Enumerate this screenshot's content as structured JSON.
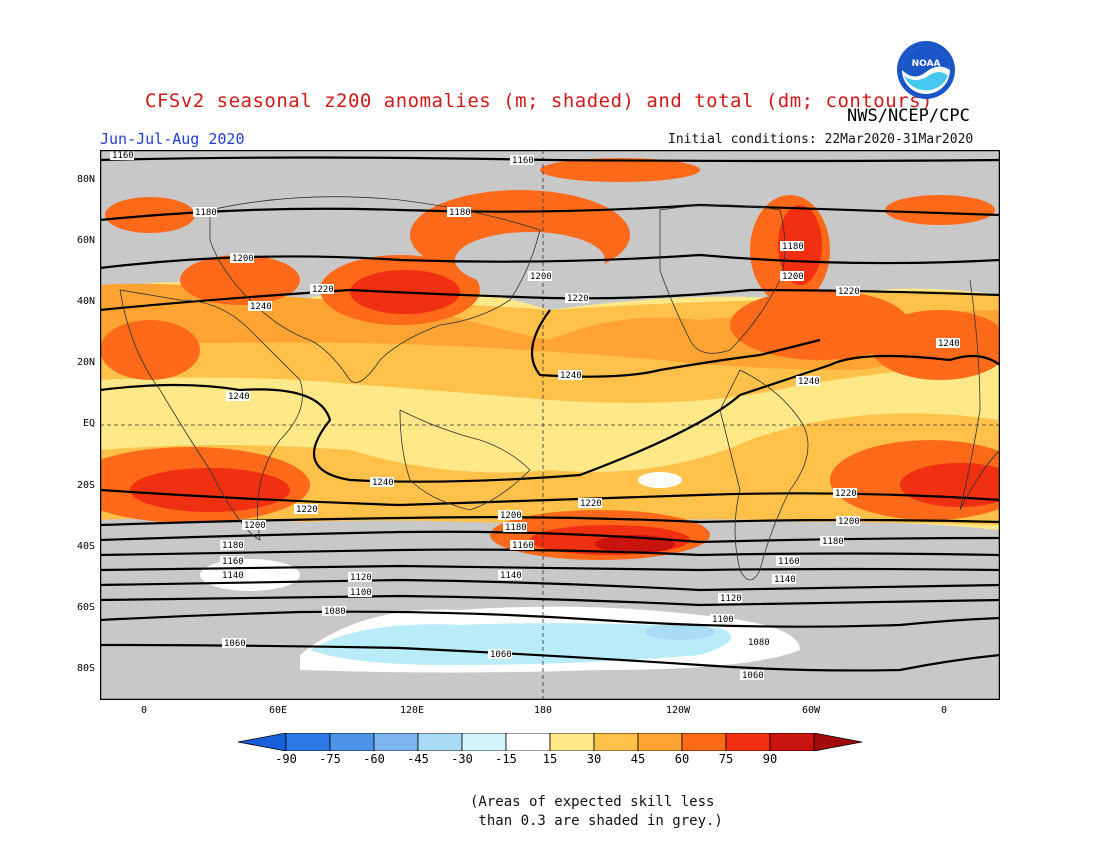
{
  "title": "CFSv2 seasonal z200 anomalies (m; shaded) and total (dm; contours)",
  "agency": "NWS/NCEP/CPC",
  "season": "Jun-Jul-Aug 2020",
  "initial_conditions": "Initial conditions: 22Mar2020-31Mar2020",
  "logo_text": "NOAA",
  "lat_labels": [
    "80N",
    "60N",
    "40N",
    "20N",
    "EQ",
    "20S",
    "40S",
    "60S",
    "80S"
  ],
  "lon_labels": [
    "0",
    "60E",
    "120E",
    "180",
    "120W",
    "60W",
    "0"
  ],
  "colorbar": {
    "labels": [
      "-90",
      "-75",
      "-60",
      "-45",
      "-30",
      "-15",
      "15",
      "30",
      "45",
      "60",
      "75",
      "90"
    ],
    "colors": [
      "#1560d8",
      "#2d7ae6",
      "#4c93ea",
      "#7cb4ef",
      "#a8dcf5",
      "#d4f4fb",
      "#ffffff",
      "#ffe887",
      "#ffc14a",
      "#ffa432",
      "#ff6a1a",
      "#f03010",
      "#c8130f",
      "#a00a0a"
    ]
  },
  "note": "(Areas of expected skill less\n than 0.3 are shaded in grey.)",
  "contour_labels": [
    "1160",
    "1180",
    "1200",
    "1220",
    "1240",
    "1140",
    "1120",
    "1100",
    "1080",
    "1060"
  ],
  "colors": {
    "grey": "#c8c8c8",
    "light_blue": "#b8ecf8"
  }
}
